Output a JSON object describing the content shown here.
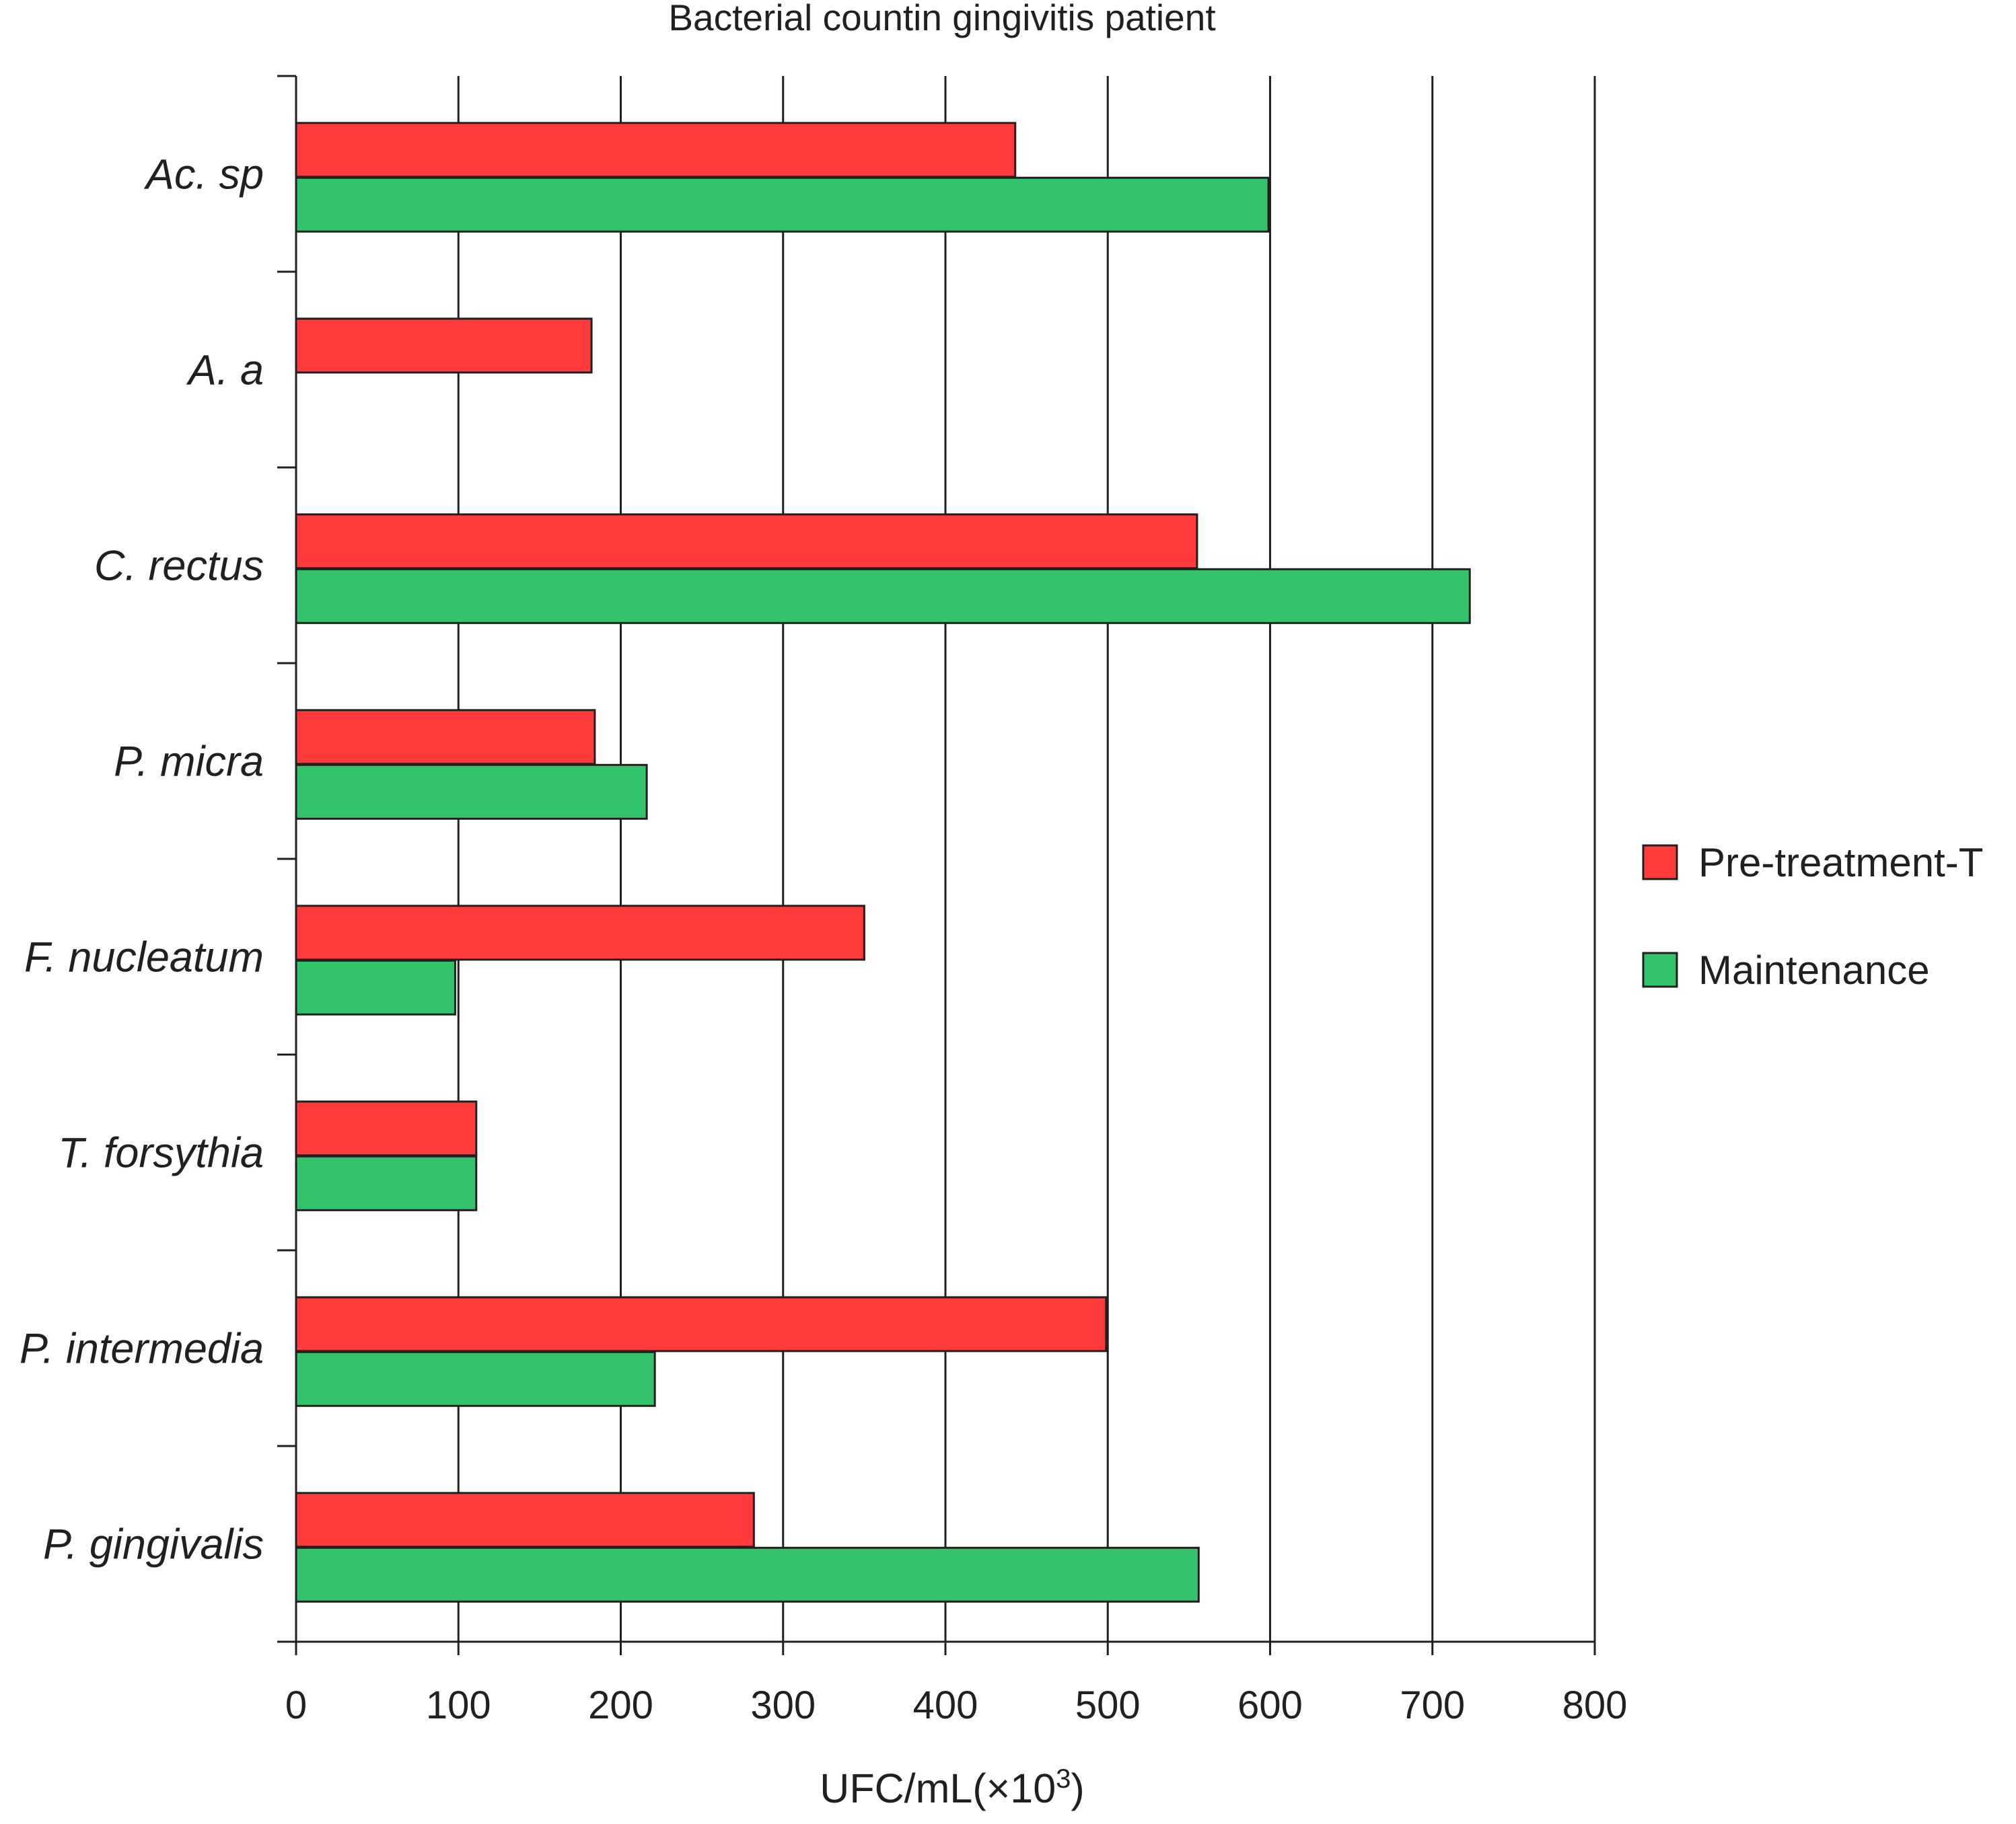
{
  "chart_data": {
    "type": "bar",
    "orientation": "horizontal",
    "title": "Bacterial countin gingivitis patient",
    "xlabel": "UFC/mL(×10",
    "xlabel_superscript": "3",
    "xlabel_suffix": ")",
    "ylabel": "",
    "xlim": [
      0,
      800
    ],
    "x_ticks": [
      0,
      100,
      200,
      300,
      400,
      500,
      600,
      700,
      800
    ],
    "grid": "vertical",
    "legend_position": "right",
    "categories": [
      "Ac. sp",
      "A. a",
      "C. rectus",
      "P. micra",
      "F. nucleatum",
      "T. forsythia",
      "P. intermedia",
      "P. gingivalis"
    ],
    "series": [
      {
        "name": "Pre-treatment-T",
        "color": "#ff3b3b",
        "values": [
          443,
          182,
          555,
          184,
          350,
          111,
          499,
          282
        ]
      },
      {
        "name": "Maintenance",
        "color": "#33c46b",
        "values": [
          599,
          0,
          723,
          216,
          98,
          111,
          221,
          556
        ]
      }
    ]
  }
}
